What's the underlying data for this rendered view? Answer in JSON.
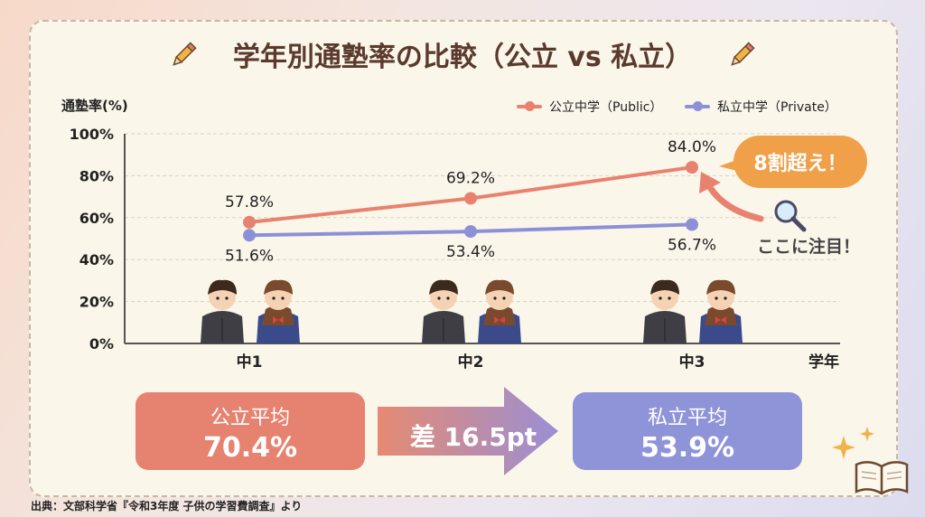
{
  "title": "学年別通塾率の比較（公立 vs 私立）",
  "chart_data": {
    "type": "line",
    "title": "学年別通塾率の比較（公立 vs 私立）",
    "ylabel": "通塾率(%)",
    "xlabel": "学年",
    "categories": [
      "中1",
      "中2",
      "中3"
    ],
    "yticks": [
      "0%",
      "20%",
      "40%",
      "60%",
      "80%",
      "100%"
    ],
    "ylim": [
      0,
      100
    ],
    "grid": true,
    "legend_position": "top-right",
    "series": [
      {
        "name": "公立中学（Public）",
        "color": "#e8826f",
        "values": [
          57.8,
          69.2,
          84.0
        ],
        "labels": [
          "57.8%",
          "69.2%",
          "84.0%"
        ]
      },
      {
        "name": "私立中学（Private）",
        "color": "#8c90d6",
        "values": [
          51.6,
          53.4,
          56.7
        ],
        "labels": [
          "51.6%",
          "53.4%",
          "56.7%"
        ]
      }
    ],
    "annotations": {
      "bubble": "8割超え！",
      "note": "ここに注目！"
    }
  },
  "summary": {
    "public": {
      "label": "公立平均",
      "value": "70.4%",
      "color": "#e68370"
    },
    "private": {
      "label": "私立平均",
      "value": "53.9%",
      "color": "#8f93d8"
    },
    "difference": "差 16.5pt"
  },
  "source": "出典：文部科学省『令和3年度 子供の学習費調査』より"
}
